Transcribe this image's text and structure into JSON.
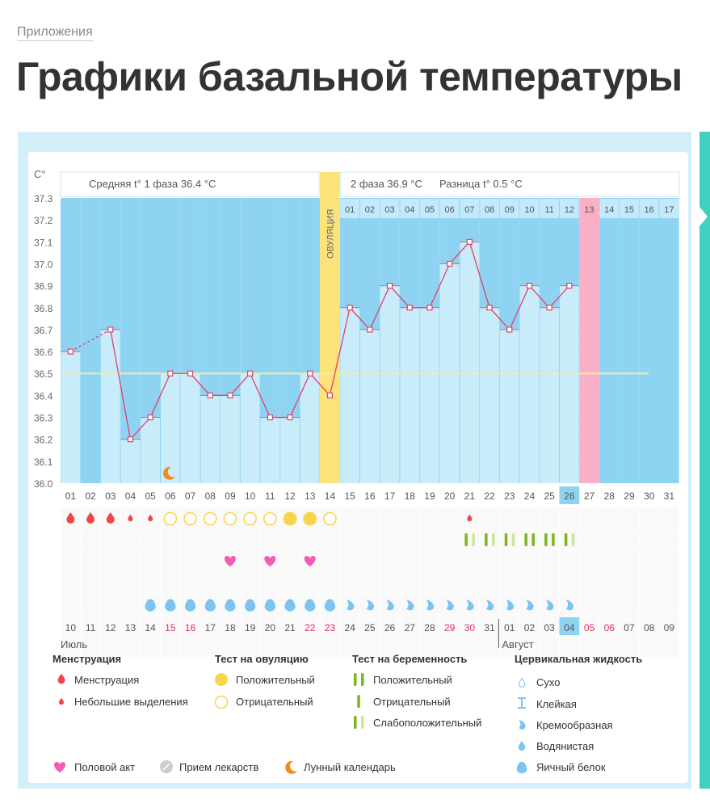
{
  "breadcrumb": "Приложения",
  "page_title": "Графики базальной температуры",
  "colors": {
    "accent": "#3fd0c0",
    "day_bg": "#8ed4f2",
    "bar": "#c9ecfb",
    "line": "#e0406a",
    "ovulation": "#fbe37a",
    "coverline": "#f2ee9a",
    "pink_day": "#f9b0c6",
    "menstruation": "#f0454a",
    "ovulation_test": "#fad44a",
    "preg_dark": "#7db51f",
    "preg_light": "#cfe3a0",
    "heart": "#f25cb3",
    "cervical": "#7cc4ef",
    "moon": "#f08c1a",
    "pill": "#cccccc",
    "weekend": "#e0306a"
  },
  "chart_data": {
    "type": "line",
    "yunit": "C°",
    "ylim": [
      36.0,
      37.3
    ],
    "yticks": [
      "37.3",
      "37.2",
      "37.1",
      "37.0",
      "36.9",
      "36.8",
      "36.7",
      "36.6",
      "36.5",
      "36.4",
      "36.3",
      "36.2",
      "36.1",
      "36.0"
    ],
    "phase1_label": "Средняя t° 1 фаза 36.4 °C",
    "phase2_label": "2 фаза 36.9 °C",
    "diff_label": "Разница t° 0.5 °C",
    "ovulation_label": "ОВУЛЯЦИЯ",
    "ovulation_day": 14,
    "coverline": 36.5,
    "cycle_days": [
      "01",
      "02",
      "03",
      "04",
      "05",
      "06",
      "07",
      "08",
      "09",
      "10",
      "11",
      "12",
      "13",
      "14",
      "15",
      "16",
      "17",
      "18",
      "19",
      "20",
      "21",
      "22",
      "23",
      "24",
      "25",
      "26",
      "27",
      "28",
      "29",
      "30",
      "31"
    ],
    "post_ovulation_days": [
      "01",
      "02",
      "03",
      "04",
      "05",
      "06",
      "07",
      "08",
      "09",
      "10",
      "11",
      "12",
      "13",
      "14",
      "15",
      "16",
      "17"
    ],
    "highlight_post_ovulation_day": "13",
    "current_cycle_day": "26",
    "temperatures": [
      36.6,
      null,
      36.7,
      36.2,
      36.3,
      36.5,
      36.5,
      36.4,
      36.4,
      36.5,
      36.3,
      36.3,
      36.5,
      36.4,
      36.8,
      36.7,
      36.9,
      36.8,
      36.8,
      37.0,
      37.1,
      36.8,
      36.7,
      36.9,
      36.8,
      36.9,
      null,
      null,
      null,
      null,
      null
    ],
    "calendar_dates": [
      "10",
      "11",
      "12",
      "13",
      "14",
      "15",
      "16",
      "17",
      "18",
      "19",
      "20",
      "21",
      "22",
      "23",
      "24",
      "25",
      "26",
      "27",
      "28",
      "29",
      "30",
      "31",
      "01",
      "02",
      "03",
      "04",
      "05",
      "06",
      "07",
      "08",
      "09"
    ],
    "weekend_dates_index": [
      5,
      6,
      12,
      13,
      19,
      20,
      26,
      27
    ],
    "current_date": "04",
    "months": [
      "Июль",
      "Август"
    ],
    "menstruation": {
      "1": "heavy",
      "2": "heavy",
      "3": "heavy",
      "4": "light",
      "5": "light",
      "21": "light"
    },
    "ovulation_test": {
      "6": "negative",
      "7": "negative",
      "8": "negative",
      "9": "negative",
      "10": "negative",
      "11": "negative",
      "12": "positive",
      "13": "positive",
      "14": "negative"
    },
    "pregnancy_test": {
      "21": "slight",
      "22": "slight",
      "23": "slight",
      "24": "positive",
      "25": "positive",
      "26": "slight"
    },
    "intercourse": [
      9,
      11,
      13
    ],
    "moon": [
      6
    ],
    "cervical_fluid": {
      "5": "egg-white",
      "6": "egg-white",
      "7": "egg-white",
      "8": "egg-white",
      "9": "egg-white",
      "10": "egg-white",
      "11": "egg-white",
      "12": "egg-white",
      "13": "egg-white",
      "14": "egg-white",
      "15": "creamy",
      "16": "creamy",
      "17": "creamy",
      "18": "creamy",
      "19": "creamy",
      "20": "creamy",
      "21": "creamy",
      "22": "creamy",
      "23": "creamy",
      "24": "creamy",
      "25": "creamy",
      "26": "creamy"
    }
  },
  "legend": {
    "menstruation": {
      "title": "Менструация",
      "items": [
        {
          "icon": "heavy-drop",
          "label": "Менструация"
        },
        {
          "icon": "light-drop",
          "label": "Небольшие выделения"
        }
      ]
    },
    "ovulation_test": {
      "title": "Тест на овуляцию",
      "items": [
        {
          "icon": "filled-circle",
          "label": "Положительный"
        },
        {
          "icon": "empty-circle",
          "label": "Отрицательный"
        }
      ]
    },
    "pregnancy_test": {
      "title": "Тест на беременность",
      "items": [
        {
          "icon": "two-bars",
          "label": "Положительный"
        },
        {
          "icon": "one-bar",
          "label": "Отрицательный"
        },
        {
          "icon": "bar-light-bar",
          "label": "Слабоположительный"
        }
      ]
    },
    "cervical": {
      "title": "Цервикальная жидкость",
      "items": [
        {
          "icon": "dry",
          "label": "Сухо"
        },
        {
          "icon": "sticky",
          "label": "Клейкая"
        },
        {
          "icon": "creamy",
          "label": "Кремообразная"
        },
        {
          "icon": "watery",
          "label": "Водянистая"
        },
        {
          "icon": "egg-white",
          "label": "Яичный белок"
        }
      ]
    },
    "other": [
      {
        "icon": "heart",
        "label": "Половой акт"
      },
      {
        "icon": "pill",
        "label": "Прием лекарств"
      },
      {
        "icon": "moon",
        "label": "Лунный календарь"
      }
    ]
  }
}
